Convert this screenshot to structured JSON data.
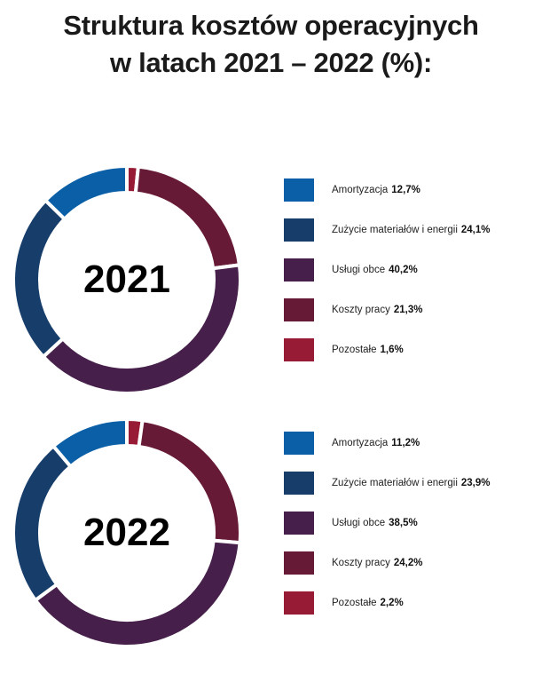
{
  "title": {
    "line1": "Struktura kosztów operacyjnych",
    "line2": "w latach 2021 – 2022 (%):"
  },
  "colors": [
    "#0a5fa6",
    "#173d6b",
    "#46204a",
    "#661a35",
    "#981b35"
  ],
  "chart_data": [
    {
      "type": "pie",
      "donut": true,
      "center_label": "2021",
      "categories": [
        "Amortyzacja",
        "Zużycie materiałów i energii",
        "Usługi obce",
        "Koszty pracy",
        "Pozostałe"
      ],
      "values": [
        12.7,
        24.1,
        40.2,
        21.3,
        1.6
      ],
      "value_labels": [
        "12,7%",
        "24,1%",
        "40,2%",
        "21,3%",
        "1,6%"
      ],
      "legend": "right"
    },
    {
      "type": "pie",
      "donut": true,
      "center_label": "2022",
      "categories": [
        "Amortyzacja",
        "Zużycie materiałów i energii",
        "Usługi obce",
        "Koszty pracy",
        "Pozostałe"
      ],
      "values": [
        11.2,
        23.9,
        38.5,
        24.2,
        2.2
      ],
      "value_labels": [
        "11,2%",
        "23,9%",
        "38,5%",
        "24,2%",
        "2,2%"
      ],
      "legend": "right"
    }
  ]
}
